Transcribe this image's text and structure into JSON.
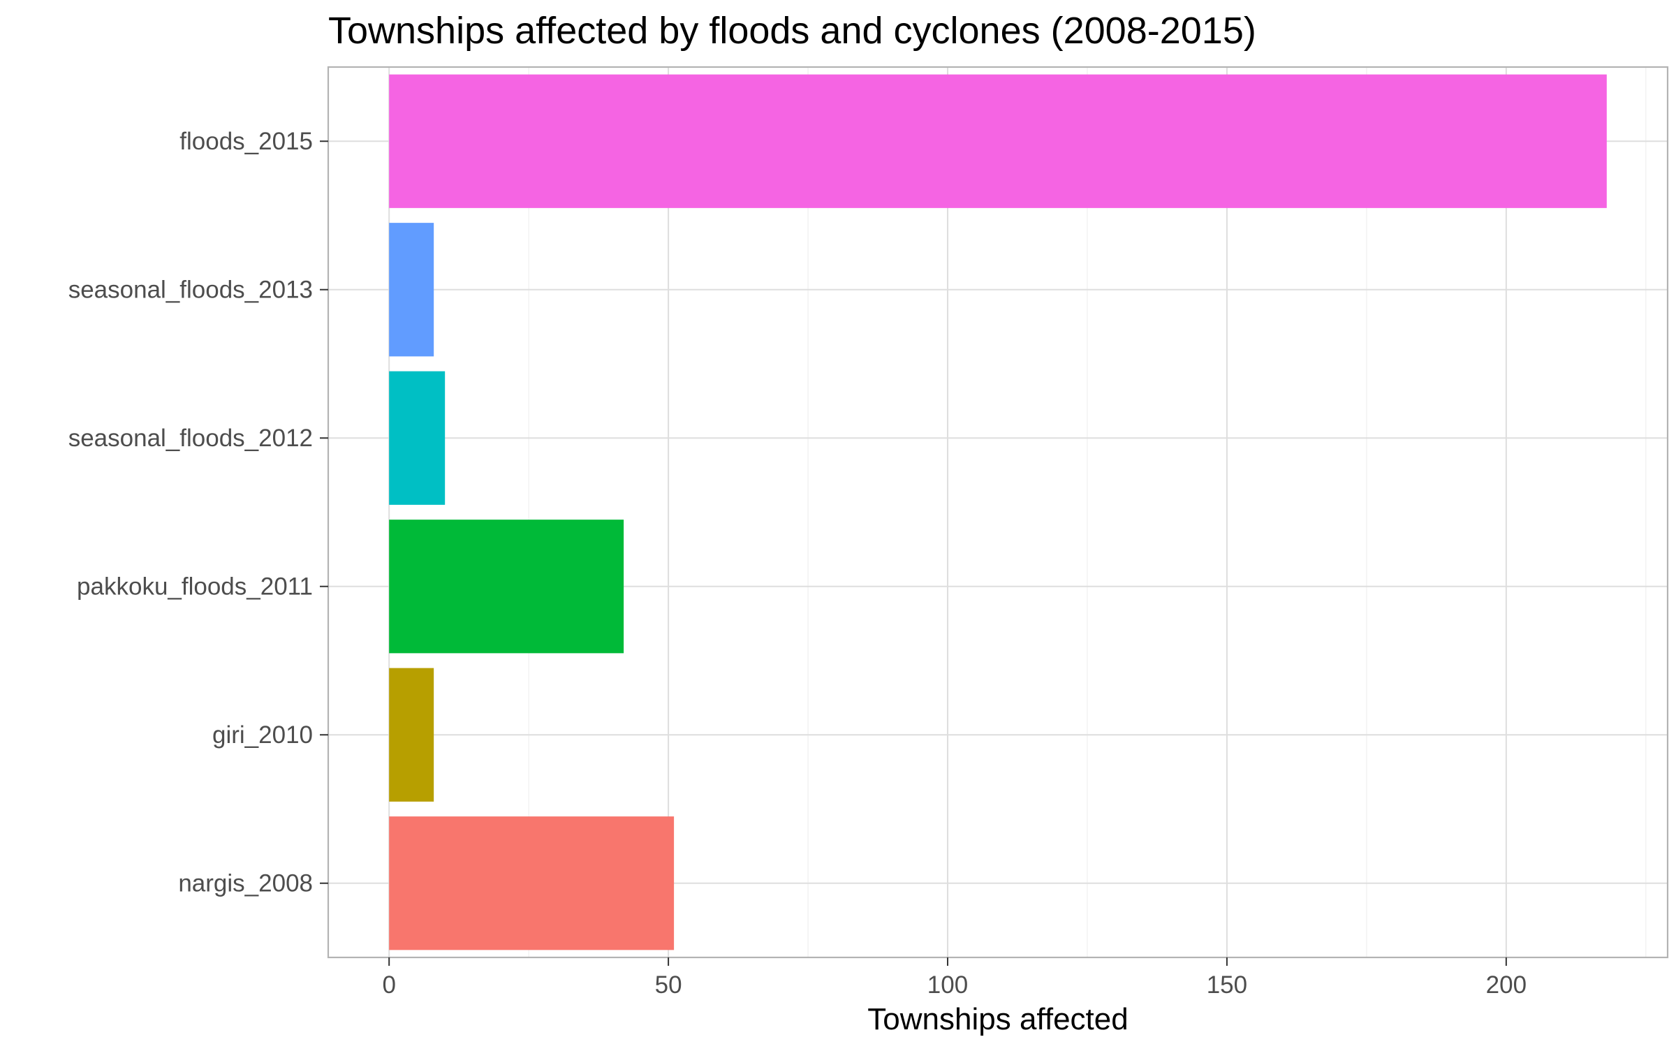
{
  "chart_data": {
    "type": "bar",
    "orientation": "horizontal",
    "title": "Townships affected by floods and cyclones (2008-2015)",
    "xlabel": "Townships affected",
    "ylabel": "",
    "categories": [
      "nargis_2008",
      "giri_2010",
      "pakkoku_floods_2011",
      "seasonal_floods_2012",
      "seasonal_floods_2013",
      "floods_2015"
    ],
    "values": [
      51,
      8,
      42,
      10,
      8,
      218
    ],
    "colors": [
      "#F8766D",
      "#B79F00",
      "#00BA38",
      "#00BFC4",
      "#619CFF",
      "#F564E3"
    ],
    "xlim": [
      -10.9,
      228.9
    ],
    "xticks": [
      0,
      50,
      100,
      150,
      200
    ],
    "xtick_labels": [
      "0",
      "50",
      "100",
      "150",
      "200"
    ],
    "grid": true,
    "legend": "none",
    "theme": {
      "panel_border": "#b3b3b3",
      "major_grid": "#dedede",
      "minor_grid": "#efefef",
      "tick_color": "#333333",
      "tick_label_color": "#4d4d4d"
    }
  }
}
